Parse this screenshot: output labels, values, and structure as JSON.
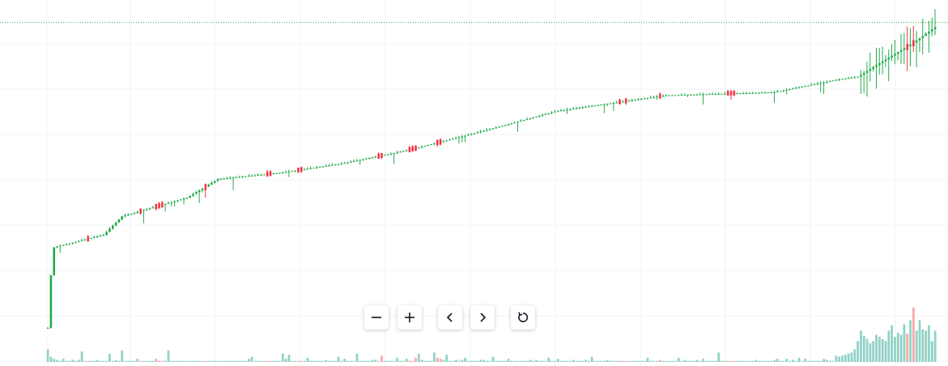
{
  "chart_data": {
    "type": "candlestick",
    "title": "",
    "xlabel": "",
    "ylabel": "",
    "grid": true,
    "colors": {
      "up": "#089981",
      "up_body": "#22ab4c",
      "down": "#f23645",
      "volume_up": "#92d2c6",
      "volume_down": "#f7a9a7",
      "grid": "#f0f3fa",
      "price_line": "#22ab4c"
    },
    "last_price": 98.5,
    "ylim": [
      0,
      100
    ],
    "volume_max": 100,
    "anchors": [
      {
        "i": 0,
        "p": 0
      },
      {
        "i": 1,
        "p": 17
      },
      {
        "i": 2,
        "p": 26
      },
      {
        "i": 10,
        "p": 28
      },
      {
        "i": 18,
        "p": 30
      },
      {
        "i": 24,
        "p": 36
      },
      {
        "i": 45,
        "p": 42
      },
      {
        "i": 55,
        "p": 48
      },
      {
        "i": 75,
        "p": 50
      },
      {
        "i": 95,
        "p": 53
      },
      {
        "i": 115,
        "p": 57
      },
      {
        "i": 135,
        "p": 62
      },
      {
        "i": 165,
        "p": 70
      },
      {
        "i": 200,
        "p": 75
      },
      {
        "i": 235,
        "p": 76
      },
      {
        "i": 255,
        "p": 80
      },
      {
        "i": 262,
        "p": 81
      },
      {
        "i": 270,
        "p": 86
      },
      {
        "i": 280,
        "p": 92
      },
      {
        "i": 287,
        "p": 97
      }
    ],
    "down_candles": [
      13,
      30,
      35,
      36,
      37,
      51,
      71,
      72,
      81,
      82,
      107,
      108,
      117,
      118,
      119,
      126,
      127,
      185,
      187,
      198,
      220,
      221,
      222,
      278,
      280
    ],
    "volumes": [
      12,
      5,
      3,
      2,
      1,
      3,
      1,
      1,
      2,
      1,
      2,
      10,
      1,
      1,
      1,
      1,
      2,
      1,
      1,
      1,
      8,
      1,
      2,
      1,
      11,
      1,
      1,
      1,
      1,
      3,
      1,
      1,
      1,
      1,
      1,
      3,
      1,
      1,
      1,
      11,
      1,
      1,
      1,
      1,
      1,
      1,
      1,
      1,
      1,
      1,
      1,
      1,
      1,
      1,
      1,
      1,
      1,
      1,
      1,
      1,
      1,
      1,
      1,
      1,
      1,
      3,
      5,
      1,
      1,
      1,
      1,
      1,
      1,
      1,
      1,
      1,
      8,
      3,
      7,
      1,
      1,
      1,
      1,
      1,
      4,
      1,
      1,
      1,
      1,
      1,
      2,
      1,
      1,
      1,
      5,
      1,
      3,
      1,
      1,
      1,
      8,
      1,
      1,
      1,
      1,
      2,
      2,
      1,
      6,
      1,
      1,
      1,
      1,
      4,
      1,
      1,
      3,
      1,
      1,
      4,
      8,
      2,
      1,
      1,
      1,
      9,
      4,
      3,
      2,
      7,
      1,
      1,
      2,
      1,
      2,
      4,
      1,
      1,
      1,
      1,
      2,
      2,
      1,
      1,
      5,
      1,
      1,
      1,
      1,
      3,
      1,
      1,
      1,
      1,
      1,
      1,
      2,
      1,
      2,
      1,
      1,
      1,
      4,
      1,
      1,
      3,
      1,
      1,
      1,
      1,
      2,
      1,
      1,
      1,
      2,
      1,
      5,
      1,
      1,
      1,
      1,
      2,
      1,
      1,
      1,
      1,
      1,
      1,
      1,
      1,
      1,
      1,
      1,
      1,
      4,
      1,
      1,
      1,
      2,
      1,
      1,
      1,
      1,
      1,
      4,
      1,
      2,
      1,
      1,
      1,
      2,
      1,
      3,
      1,
      1,
      1,
      1,
      9,
      1,
      1,
      1,
      1,
      1,
      1,
      1,
      1,
      1,
      1,
      1,
      2,
      1,
      1,
      1,
      1,
      1,
      2,
      3,
      1,
      1,
      3,
      1,
      2,
      1,
      4,
      1,
      3,
      1,
      1,
      1,
      1,
      1,
      3,
      2,
      1,
      1,
      6,
      5,
      6,
      7,
      8,
      9,
      12,
      20,
      30,
      25,
      22,
      18,
      20,
      26,
      24,
      22,
      20,
      30,
      35,
      24,
      28,
      26,
      36,
      27,
      40,
      52,
      30,
      40,
      31,
      30,
      35,
      20,
      30
    ]
  },
  "controls": {
    "zoom_out": "zoom-out",
    "zoom_in": "zoom-in",
    "scroll_left": "scroll-left",
    "scroll_right": "scroll-right",
    "reset": "reset-chart"
  }
}
